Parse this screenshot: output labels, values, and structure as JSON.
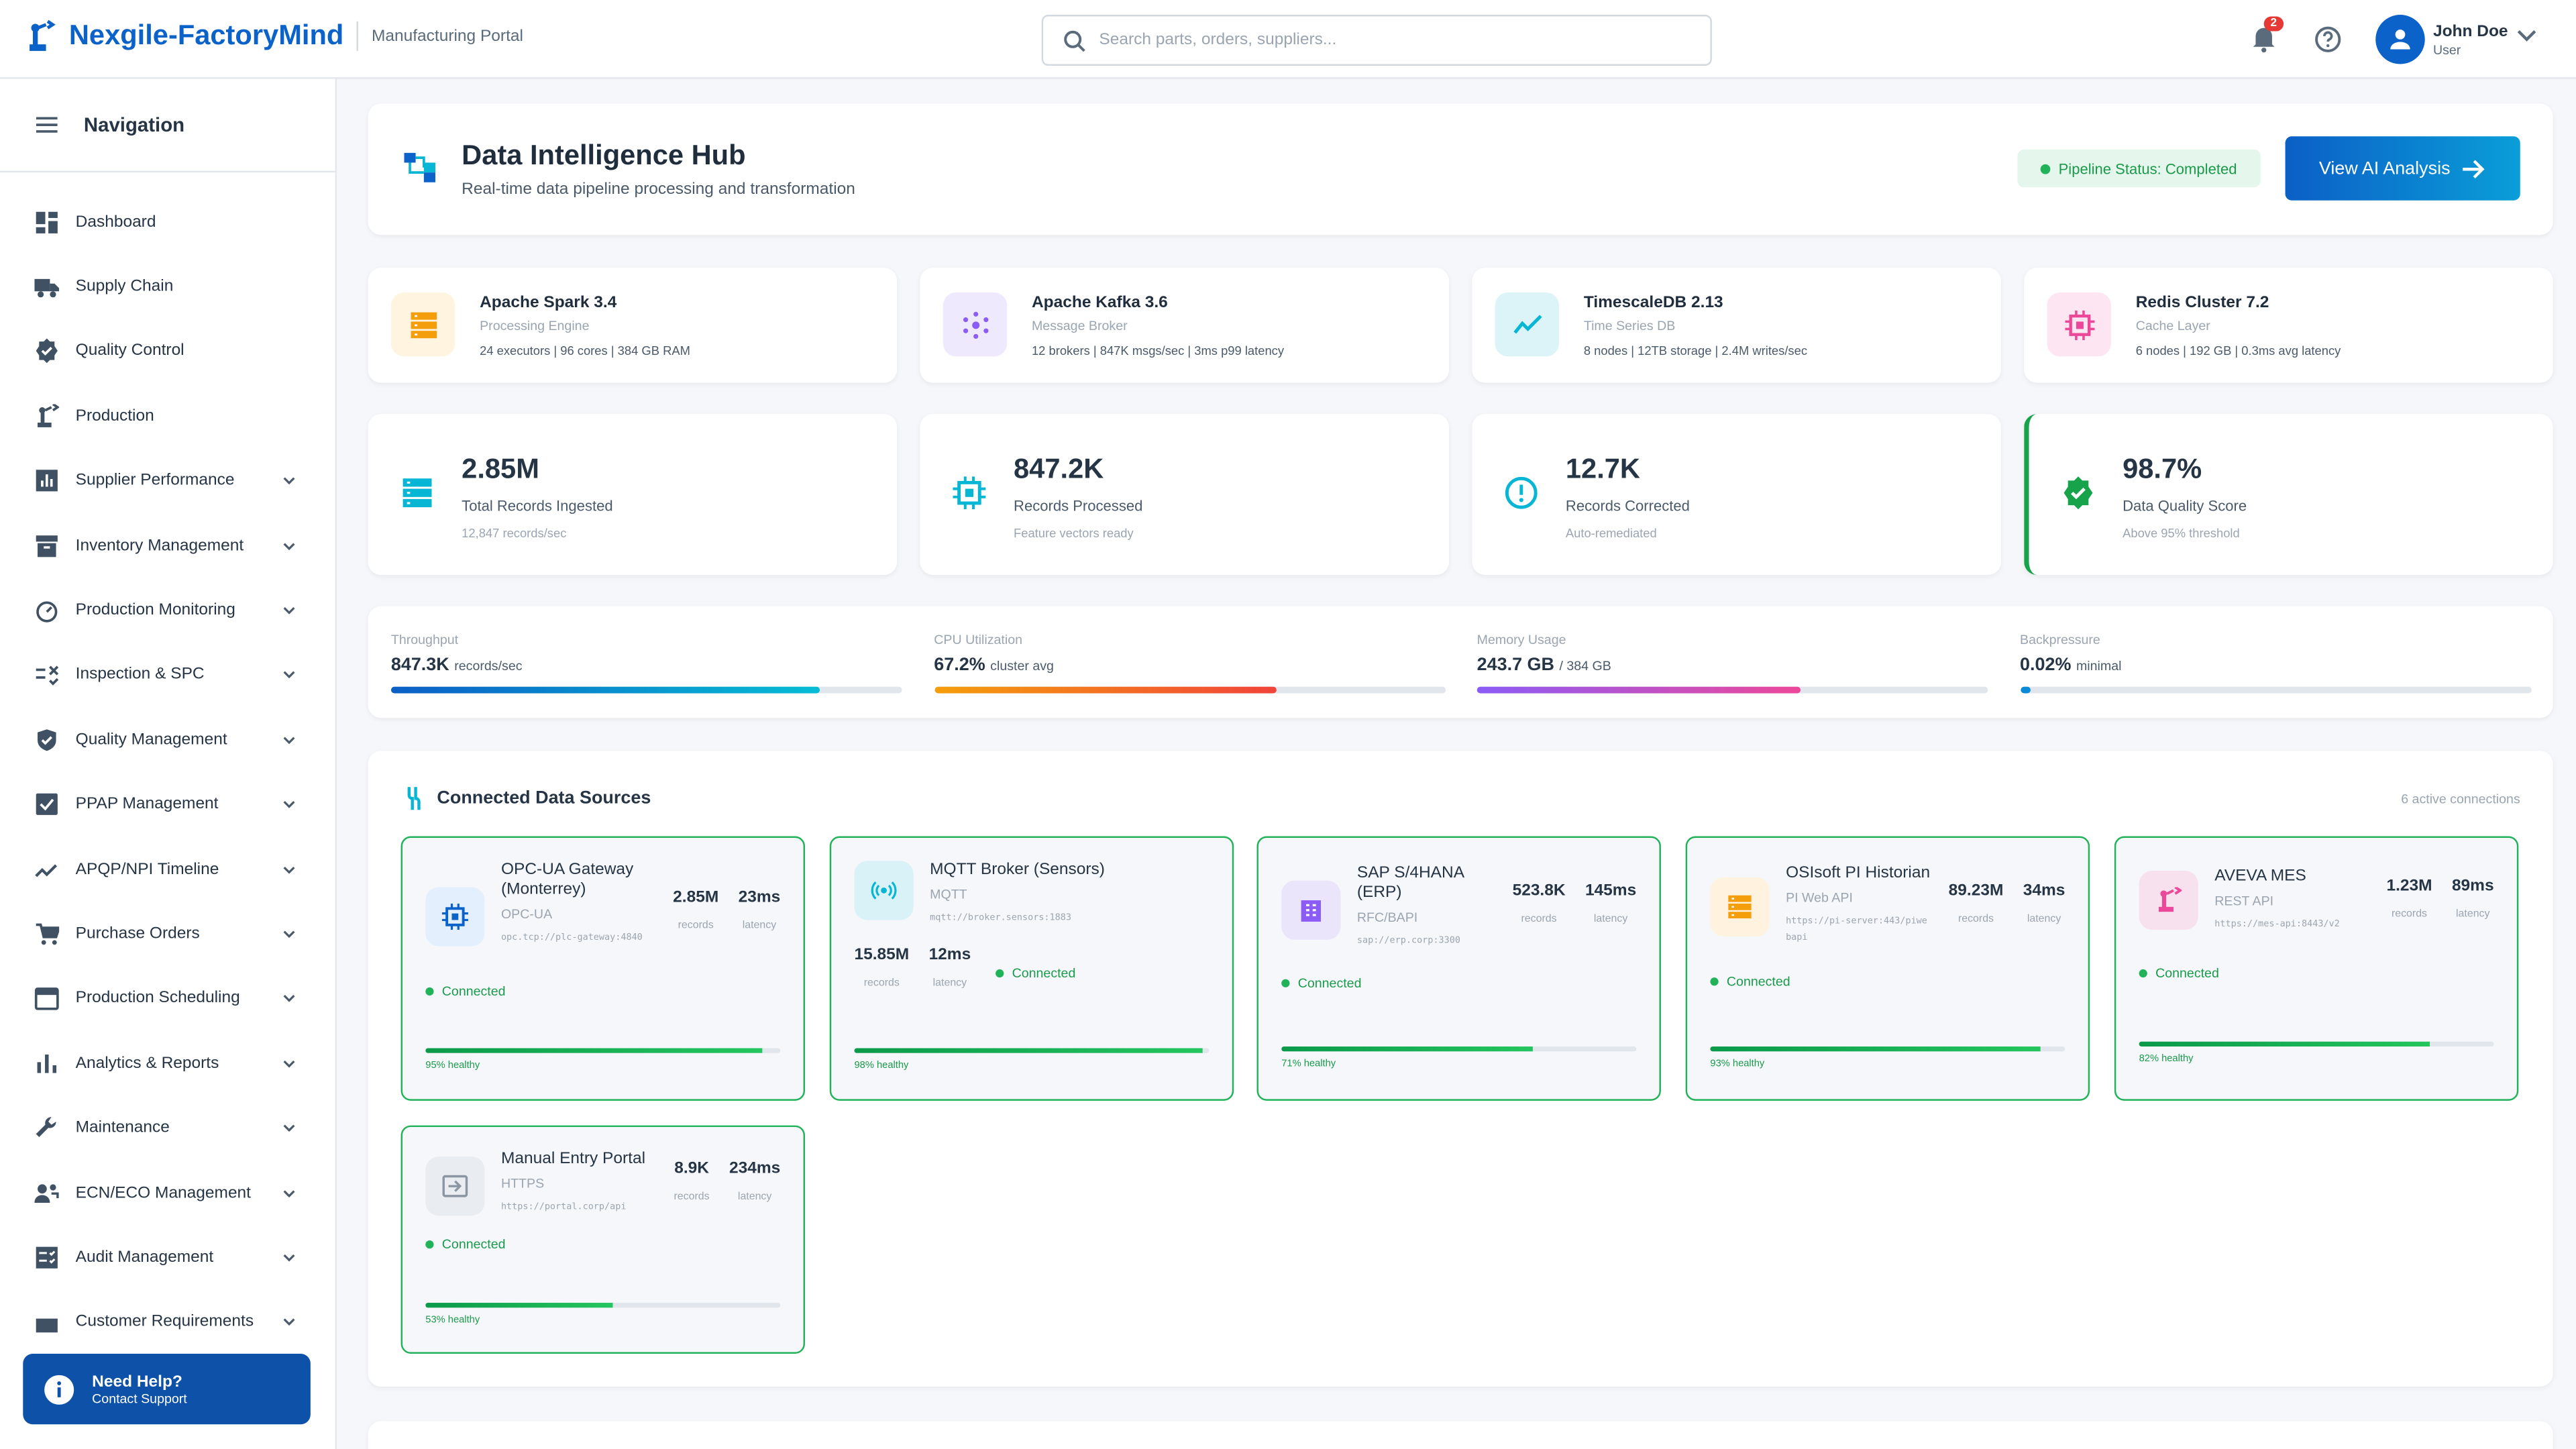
{
  "header": {
    "brand": "Nexgile-FactoryMind",
    "subtitle": "Manufacturing Portal",
    "search_placeholder": "Search parts, orders, suppliers...",
    "notifications": "2",
    "user_name": "John Doe",
    "user_role": "User"
  },
  "sidebar": {
    "title": "Navigation",
    "items": [
      {
        "label": "Dashboard",
        "icon": "dashboard-icon",
        "expand": false
      },
      {
        "label": "Supply Chain",
        "icon": "truck-icon",
        "expand": false
      },
      {
        "label": "Quality Control",
        "icon": "verified-icon",
        "expand": false
      },
      {
        "label": "Production",
        "icon": "robot-arm-icon",
        "expand": false
      },
      {
        "label": "Supplier Performance",
        "icon": "bar-chart-icon",
        "expand": true
      },
      {
        "label": "Inventory Management",
        "icon": "inventory-icon",
        "expand": true
      },
      {
        "label": "Production Monitoring",
        "icon": "gauge-icon",
        "expand": true
      },
      {
        "label": "Inspection & SPC",
        "icon": "rule-icon",
        "expand": true
      },
      {
        "label": "Quality Management",
        "icon": "shield-check-icon",
        "expand": true
      },
      {
        "label": "PPAP Management",
        "icon": "checkbox-icon",
        "expand": true
      },
      {
        "label": "APQP/NPI Timeline",
        "icon": "timeline-icon",
        "expand": true
      },
      {
        "label": "Purchase Orders",
        "icon": "cart-icon",
        "expand": true
      },
      {
        "label": "Production Scheduling",
        "icon": "calendar-icon",
        "expand": true
      },
      {
        "label": "Analytics & Reports",
        "icon": "analytics-icon",
        "expand": true
      },
      {
        "label": "Maintenance",
        "icon": "wrench-icon",
        "expand": true
      },
      {
        "label": "ECN/ECO Management",
        "icon": "people-icon",
        "expand": true
      },
      {
        "label": "Audit Management",
        "icon": "checklist-icon",
        "expand": true
      },
      {
        "label": "Customer Requirements",
        "icon": "list-icon",
        "expand": true
      }
    ],
    "help_title": "Need Help?",
    "help_sub": "Contact Support"
  },
  "hero": {
    "title": "Data Intelligence Hub",
    "subtitle": "Real-time data pipeline processing and transformation",
    "status": "Pipeline Status: Completed",
    "button": "View AI Analysis"
  },
  "tech": [
    {
      "name": "Apache Spark 3.4",
      "role": "Processing Engine",
      "detail": "24 executors | 96 cores | 384 GB RAM",
      "icon": "storage-icon",
      "color": "#f59e0b",
      "bg": "#fff4e0"
    },
    {
      "name": "Apache Kafka 3.6",
      "role": "Message Broker",
      "detail": "12 brokers | 847K msgs/sec | 3ms p99 latency",
      "icon": "hub-icon",
      "color": "#8b5cf6",
      "bg": "#efe9fd"
    },
    {
      "name": "TimescaleDB 2.13",
      "role": "Time Series DB",
      "detail": "8 nodes | 12TB storage | 2.4M writes/sec",
      "icon": "trend-icon",
      "color": "#06b6d4",
      "bg": "#dcf4f8"
    },
    {
      "name": "Redis Cluster 7.2",
      "role": "Cache Layer",
      "detail": "6 nodes | 192 GB | 0.3ms avg latency",
      "icon": "memory-icon",
      "color": "#ec4899",
      "bg": "#fde6f1"
    }
  ],
  "stats": [
    {
      "value": "2.85M",
      "label": "Total Records Ingested",
      "sub": "12,847 records/sec",
      "icon": "storage-icon",
      "color": "#06b6d4"
    },
    {
      "value": "847.2K",
      "label": "Records Processed",
      "sub": "Feature vectors ready",
      "icon": "memory-icon",
      "color": "#06b6d4"
    },
    {
      "value": "12.7K",
      "label": "Records Corrected",
      "sub": "Auto-remediated",
      "icon": "alert-circle-icon",
      "color": "#06b6d4"
    },
    {
      "value": "98.7%",
      "label": "Data Quality Score",
      "sub": "Above 95% threshold",
      "icon": "verified-icon",
      "color": "#16a34a"
    }
  ],
  "metrics": [
    {
      "label": "Throughput",
      "value": "847.3K",
      "unit": "records/sec",
      "percent": 84,
      "gradient": "linear-gradient(90deg,#0b5fc6,#06bcd4)"
    },
    {
      "label": "CPU Utilization",
      "value": "67.2%",
      "unit": "cluster avg",
      "percent": 67.2,
      "gradient": "linear-gradient(90deg,#f59e0b,#f0443a)"
    },
    {
      "label": "Memory Usage",
      "value": "243.7 GB",
      "unit": "/ 384 GB",
      "percent": 63.5,
      "gradient": "linear-gradient(90deg,#8b5cf6,#ec4899)"
    },
    {
      "label": "Backpressure",
      "value": "0.02%",
      "unit": "minimal",
      "percent": 2,
      "gradient": "#0a8ad8"
    }
  ],
  "sources": {
    "title": "Connected Data Sources",
    "count": "6 active connections",
    "items": [
      {
        "name": "OPC-UA Gateway (Monterrey)",
        "protocol": "OPC-UA",
        "url": "opc.tcp://plc-gateway:4840",
        "records": "2.85M",
        "latency": "23ms",
        "status": "Connected",
        "health": 95,
        "health_label": "95% healthy",
        "icon": "memory-icon",
        "color": "#0b63c9",
        "bg": "#e3effd"
      },
      {
        "name": "MQTT Broker (Sensors)",
        "protocol": "MQTT",
        "url": "mqtt://broker.sensors:1883",
        "records": "15.85M",
        "latency": "12ms",
        "status": "Connected",
        "health": 98,
        "health_label": "98% healthy",
        "icon": "broadcast-icon",
        "color": "#06b6d4",
        "bg": "#d8f2f8"
      },
      {
        "name": "SAP S/4HANA (ERP)",
        "protocol": "RFC/BAPI",
        "url": "sap://erp.corp:3300",
        "records": "523.8K",
        "latency": "145ms",
        "status": "Connected",
        "health": 71,
        "health_label": "71% healthy",
        "icon": "building-icon",
        "color": "#8b5cf6",
        "bg": "#ebe5fc"
      },
      {
        "name": "OSIsoft PI Historian",
        "protocol": "PI Web API",
        "url": "https://pi-server:443/piwebapi",
        "records": "89.23M",
        "latency": "34ms",
        "status": "Connected",
        "health": 93,
        "health_label": "93% healthy",
        "icon": "storage-icon",
        "color": "#f59e0b",
        "bg": "#fff3df"
      },
      {
        "name": "AVEVA MES",
        "protocol": "REST API",
        "url": "https://mes-api:8443/v2",
        "records": "1.23M",
        "latency": "89ms",
        "status": "Connected",
        "health": 82,
        "health_label": "82% healthy",
        "icon": "robot-arm-icon",
        "color": "#ec4899",
        "bg": "#f8e1ee"
      },
      {
        "name": "Manual Entry Portal",
        "protocol": "HTTPS",
        "url": "https://portal.corp/api",
        "records": "8.9K",
        "latency": "234ms",
        "status": "Connected",
        "health": 53,
        "health_label": "53% healthy",
        "icon": "input-icon",
        "color": "#8a96a3",
        "bg": "#e9edf1"
      }
    ],
    "records_label": "records",
    "latency_label": "latency"
  }
}
